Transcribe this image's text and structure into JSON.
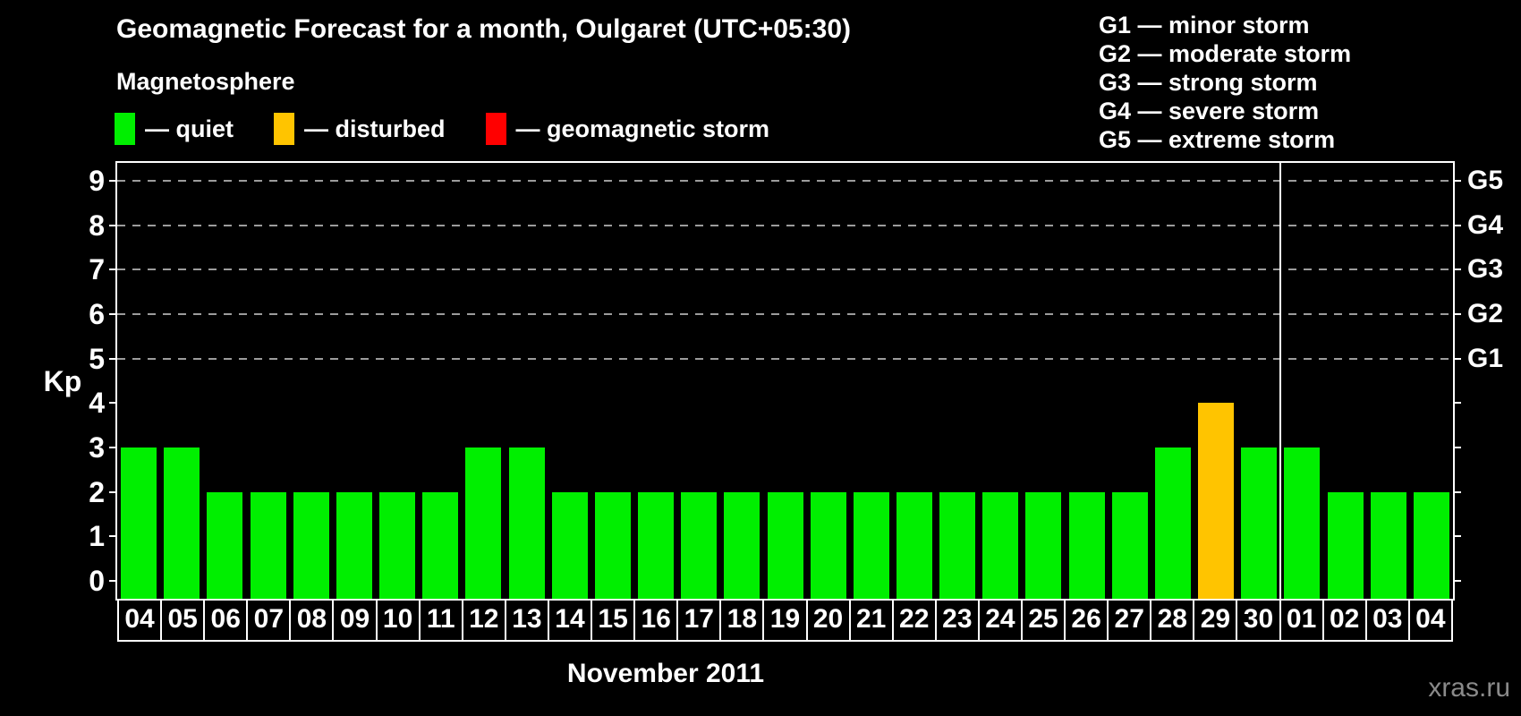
{
  "title": "Geomagnetic Forecast for a month, Oulgaret (UTC+05:30)",
  "subtitle": "Magnetosphere",
  "legend": {
    "items": [
      {
        "label": "— quiet",
        "status": "quiet",
        "color": "#00ef00"
      },
      {
        "label": "— disturbed",
        "status": "disturbed",
        "color": "#ffc400"
      },
      {
        "label": "— geomagnetic storm",
        "status": "storm",
        "color": "#ff0000"
      }
    ]
  },
  "g_legend": {
    "items": [
      "G1 — minor storm",
      "G2 — moderate storm",
      "G3 — strong storm",
      "G4 — severe storm",
      "G5 — extreme storm"
    ]
  },
  "watermark": "xras.ru",
  "chart_data": {
    "type": "bar",
    "title": "Geomagnetic Forecast for a month, Oulgaret (UTC+05:30)",
    "xlabel": "November 2011",
    "ylabel": "Kp",
    "ylim": [
      0,
      9
    ],
    "categories": [
      "04",
      "05",
      "06",
      "07",
      "08",
      "09",
      "10",
      "11",
      "12",
      "13",
      "14",
      "15",
      "16",
      "17",
      "18",
      "19",
      "20",
      "21",
      "22",
      "23",
      "24",
      "25",
      "26",
      "27",
      "28",
      "29",
      "30",
      "01",
      "02",
      "03",
      "04"
    ],
    "values": [
      3,
      3,
      2,
      2,
      2,
      2,
      2,
      2,
      3,
      3,
      2,
      2,
      2,
      2,
      2,
      2,
      2,
      2,
      2,
      2,
      2,
      2,
      2,
      2,
      3,
      4,
      3,
      3,
      2,
      2,
      2
    ],
    "statuses": [
      "quiet",
      "quiet",
      "quiet",
      "quiet",
      "quiet",
      "quiet",
      "quiet",
      "quiet",
      "quiet",
      "quiet",
      "quiet",
      "quiet",
      "quiet",
      "quiet",
      "quiet",
      "quiet",
      "quiet",
      "quiet",
      "quiet",
      "quiet",
      "quiet",
      "quiet",
      "quiet",
      "quiet",
      "quiet",
      "disturbed",
      "quiet",
      "quiet",
      "quiet",
      "quiet",
      "quiet"
    ],
    "bar_colors": {
      "quiet": "#00ef00",
      "disturbed": "#ffc400",
      "storm": "#ff0000"
    },
    "y_ticks": [
      0,
      1,
      2,
      3,
      4,
      5,
      6,
      7,
      8,
      9
    ],
    "gridlines_at": [
      5,
      6,
      7,
      8,
      9
    ],
    "right_axis": [
      {
        "label": "G1",
        "kp": 5
      },
      {
        "label": "G2",
        "kp": 6
      },
      {
        "label": "G3",
        "kp": 7
      },
      {
        "label": "G4",
        "kp": 8
      },
      {
        "label": "G5",
        "kp": 9
      }
    ],
    "month_boundary_after_index": 26,
    "legend_position": "top",
    "grid": "dashed horizontal at G levels"
  }
}
